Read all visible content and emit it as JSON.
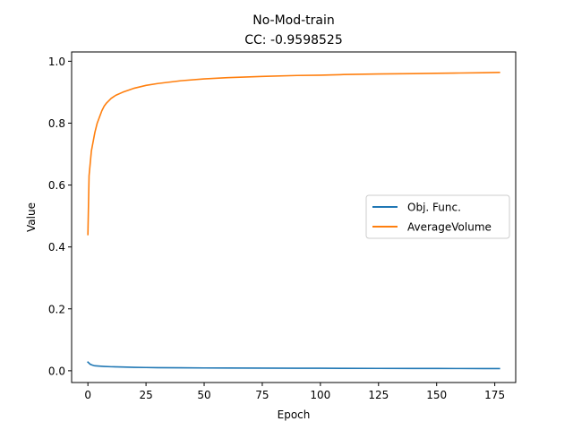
{
  "chart_data": {
    "type": "line",
    "title": "No-Mod-train",
    "subtitle": "CC: -0.9598525",
    "xlabel": "Epoch",
    "ylabel": "Value",
    "xlim": [
      -7,
      184
    ],
    "ylim": [
      -0.038,
      1.03
    ],
    "x_ticks": [
      0,
      25,
      50,
      75,
      100,
      125,
      150,
      175
    ],
    "x_tick_labels": [
      "0",
      "25",
      "50",
      "75",
      "100",
      "125",
      "150",
      "175"
    ],
    "y_ticks": [
      0.0,
      0.2,
      0.4,
      0.6,
      0.8,
      1.0
    ],
    "y_tick_labels": [
      "0.0",
      "0.2",
      "0.4",
      "0.6",
      "0.8",
      "1.0"
    ],
    "grid": false,
    "legend_position": "center-right",
    "series": [
      {
        "name": "Obj. Func.",
        "color": "#1f77b4",
        "x": [
          0,
          1,
          2,
          3,
          5,
          7,
          10,
          15,
          20,
          25,
          30,
          40,
          50,
          60,
          75,
          90,
          100,
          110,
          125,
          140,
          150,
          160,
          170,
          177
        ],
        "y": [
          0.028,
          0.021,
          0.018,
          0.016,
          0.015,
          0.014,
          0.013,
          0.012,
          0.011,
          0.0105,
          0.01,
          0.0095,
          0.009,
          0.0087,
          0.0084,
          0.0081,
          0.008,
          0.0078,
          0.0076,
          0.0074,
          0.0073,
          0.0072,
          0.0071,
          0.007
        ]
      },
      {
        "name": "AverageVolume",
        "color": "#ff7f0e",
        "x": [
          0,
          0.5,
          1,
          1.5,
          2,
          3,
          4,
          5,
          6,
          7,
          8,
          10,
          12,
          15,
          20,
          25,
          30,
          40,
          50,
          60,
          75,
          90,
          100,
          110,
          125,
          140,
          150,
          160,
          170,
          177
        ],
        "y": [
          0.44,
          0.63,
          0.67,
          0.71,
          0.73,
          0.77,
          0.8,
          0.82,
          0.84,
          0.855,
          0.865,
          0.88,
          0.89,
          0.9,
          0.913,
          0.922,
          0.928,
          0.937,
          0.943,
          0.947,
          0.951,
          0.954,
          0.955,
          0.957,
          0.959,
          0.96,
          0.961,
          0.962,
          0.963,
          0.964
        ]
      }
    ]
  }
}
